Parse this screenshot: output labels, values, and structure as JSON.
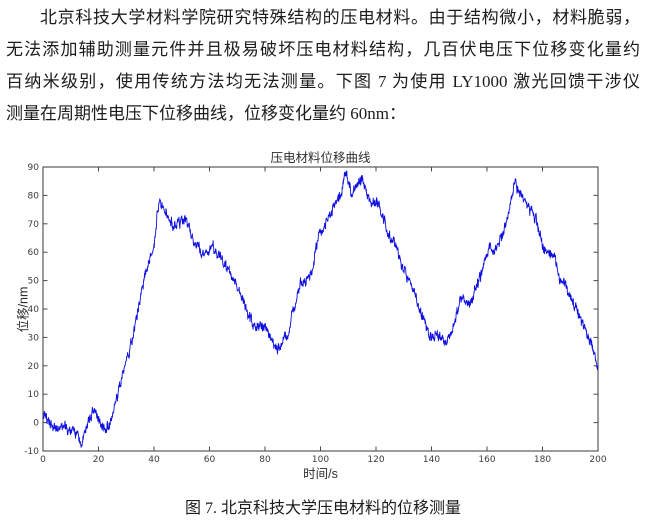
{
  "paragraph": {
    "lines": [
      "北京科技大学材料学院研究特殊结构的压电材料。由于结构微小，材料脆弱，",
      "无法添加辅助测量元件并且极易破坏压电材料结构，几百伏电压下位移变化量约",
      "百纳米级别，使用传统方法均无法测量。下图 7 为使用 LY1000 激光回馈干涉仪",
      "测量在周期性电压下位移曲线，位移变化量约 60nm："
    ]
  },
  "figure": {
    "caption": "图 7. 北京科技大学压电材料的位移测量"
  },
  "chart_data": {
    "type": "line",
    "title": "压电材料位移曲线",
    "xlabel": "时间/s",
    "ylabel": "位移/nm",
    "xlim": [
      0,
      200
    ],
    "ylim": [
      -10,
      90
    ],
    "xticks": [
      0,
      20,
      40,
      60,
      80,
      100,
      120,
      140,
      160,
      180,
      200
    ],
    "yticks": [
      -10,
      0,
      10,
      20,
      30,
      40,
      50,
      60,
      70,
      80,
      90
    ],
    "grid": false,
    "legend": null,
    "line_color": "#0f0fe0",
    "axis_color": "#4a4a4a",
    "tick_label_color": "#3c3c3c",
    "noise_amplitude_nm": 2.5,
    "series_name": "位移",
    "trend_keypoints": {
      "x": [
        0,
        2,
        5,
        8,
        11,
        13,
        14,
        15,
        17,
        18,
        20,
        22,
        24,
        26,
        28,
        30,
        32,
        34,
        36,
        38,
        40,
        42,
        44,
        46,
        48,
        50,
        51,
        53,
        55,
        57,
        59,
        61,
        63,
        65,
        67,
        69,
        71,
        73,
        75,
        77,
        79,
        81,
        83,
        85,
        87,
        89,
        91,
        93,
        95,
        97,
        99,
        101,
        103,
        105,
        107,
        109,
        111,
        113,
        115,
        117,
        119,
        121,
        123,
        125,
        127,
        129,
        131,
        133,
        135,
        137,
        139,
        141,
        143,
        145,
        147,
        149,
        151,
        153,
        155,
        157,
        159,
        161,
        163,
        165,
        167,
        169,
        170,
        172,
        174,
        176,
        178,
        180,
        182,
        184,
        186,
        188,
        190,
        192,
        194,
        196,
        198,
        200
      ],
      "y": [
        3,
        0,
        -2,
        -2,
        -3,
        -6,
        -8,
        -4,
        2,
        5,
        1,
        -2,
        -2,
        6,
        14,
        22,
        28,
        38,
        48,
        57,
        63,
        79,
        74,
        71,
        69,
        71,
        72,
        68,
        62,
        60,
        60,
        62,
        59,
        56,
        53,
        50,
        45,
        40,
        36,
        34,
        34,
        31,
        27,
        26,
        29,
        35,
        42,
        49,
        50,
        53,
        65,
        68,
        72,
        76,
        81,
        87,
        81,
        83,
        86,
        80,
        78,
        76,
        71,
        65,
        62,
        57,
        52,
        48,
        42,
        37,
        32,
        30,
        31,
        28,
        31,
        38,
        45,
        42,
        44,
        50,
        56,
        62,
        60,
        65,
        70,
        79,
        85,
        81,
        77,
        74,
        71,
        63,
        60,
        59,
        52,
        50,
        43,
        41,
        35,
        32,
        26,
        20
      ]
    }
  }
}
